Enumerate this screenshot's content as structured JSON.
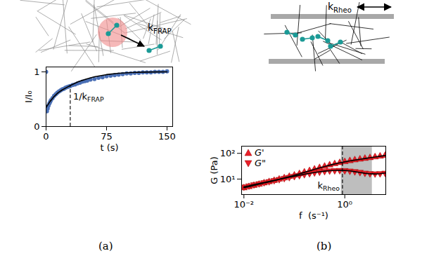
{
  "chart_data": [
    {
      "type": "scatter",
      "caption": "(a)",
      "xlabel": "t (s)",
      "ylabel": "I/I₀",
      "xlim": [
        0,
        157
      ],
      "ylim": [
        0,
        1.09
      ],
      "xticks": [
        0,
        75,
        150
      ],
      "yticks": [
        0,
        1
      ],
      "series": [
        {
          "type": "scatter",
          "color": "#4a6fb5",
          "marker": "circle",
          "x": [
            0,
            1,
            2,
            3,
            4,
            5,
            6,
            8,
            10,
            12,
            14,
            16,
            18,
            20,
            22,
            24,
            26,
            28,
            30,
            33,
            36,
            39,
            42,
            45,
            48,
            51,
            55,
            60,
            65,
            70,
            75,
            80,
            85,
            90,
            95,
            100,
            105,
            110,
            115,
            120,
            125,
            130,
            135,
            140,
            145,
            150
          ],
          "values": [
            1.0,
            0.28,
            0.33,
            0.38,
            0.42,
            0.45,
            0.48,
            0.52,
            0.56,
            0.59,
            0.62,
            0.64,
            0.66,
            0.68,
            0.69,
            0.71,
            0.72,
            0.73,
            0.74,
            0.76,
            0.77,
            0.79,
            0.8,
            0.82,
            0.83,
            0.84,
            0.86,
            0.87,
            0.89,
            0.9,
            0.92,
            0.93,
            0.94,
            0.95,
            0.96,
            0.97,
            0.97,
            0.98,
            0.98,
            0.99,
            0.99,
            0.99,
            1.0,
            1.0,
            1.0,
            1.01
          ]
        },
        {
          "type": "line",
          "color": "#000000",
          "line_style": "solid",
          "x": [
            0,
            5,
            10,
            15,
            20,
            25,
            30,
            40,
            50,
            60,
            75,
            90,
            105,
            120,
            135,
            150
          ],
          "values": [
            0.35,
            0.46,
            0.55,
            0.62,
            0.67,
            0.71,
            0.75,
            0.82,
            0.87,
            0.91,
            0.95,
            0.975,
            0.988,
            0.995,
            0.998,
            1.0
          ]
        }
      ],
      "vline": {
        "x": 30,
        "y_end": 0.75,
        "line_style": "dashed",
        "label": "1/k",
        "label_subscript": "FRAP"
      },
      "schematic": {
        "label": "k",
        "label_subscript": "FRAP"
      }
    },
    {
      "type": "scatter",
      "caption": "(b)",
      "xlabel": "f  (s⁻¹)",
      "ylabel": "G (Pa)",
      "log": true,
      "legend": "upper left",
      "xlim": [
        0.009,
        6.5
      ],
      "ylim": [
        2.5,
        190
      ],
      "xticks": [
        {
          "value": 0.01,
          "label": "10⁻²"
        },
        {
          "value": 1,
          "label": "10⁰"
        }
      ],
      "yticks": [
        {
          "value": 10,
          "label": "10¹"
        },
        {
          "value": 100,
          "label": "10²"
        }
      ],
      "series": [
        {
          "name": "G'",
          "type": "scatter",
          "color": "#e8202a",
          "marker": "triangle-up",
          "x": [
            0.01,
            0.0126,
            0.0158,
            0.02,
            0.0251,
            0.0316,
            0.0398,
            0.0501,
            0.0631,
            0.0794,
            0.1,
            0.126,
            0.158,
            0.2,
            0.251,
            0.316,
            0.398,
            0.501,
            0.631,
            0.794,
            1,
            1.26,
            1.58,
            2,
            2.51,
            3.16,
            3.98,
            5.01,
            6.31
          ],
          "values": [
            4.5,
            5.0,
            5.6,
            6.2,
            7.0,
            7.8,
            8.7,
            9.8,
            11,
            12.5,
            14,
            16,
            18.5,
            21,
            24,
            27.5,
            31,
            35,
            39,
            43,
            47,
            51,
            55,
            59,
            63,
            67,
            72,
            77,
            82
          ]
        },
        {
          "name": "G\"",
          "type": "scatter",
          "color": "#e8202a",
          "marker": "triangle-down",
          "x": [
            0.01,
            0.0126,
            0.0158,
            0.02,
            0.0251,
            0.0316,
            0.0398,
            0.0501,
            0.0631,
            0.0794,
            0.1,
            0.126,
            0.158,
            0.2,
            0.251,
            0.316,
            0.398,
            0.501,
            0.631,
            0.794,
            1,
            1.26,
            1.58,
            2,
            2.51,
            3.16,
            3.98,
            5.01,
            6.31
          ],
          "values": [
            5.0,
            5.5,
            6.1,
            6.7,
            7.4,
            8.1,
            8.9,
            9.8,
            10.8,
            11.8,
            12.9,
            14,
            15.3,
            16.6,
            17.9,
            19.1,
            20.2,
            21.1,
            21.7,
            21.9,
            21.6,
            20.8,
            19.7,
            18.5,
            17.3,
            16.5,
            16.2,
            16.5,
            17.2
          ]
        },
        {
          "type": "line",
          "color": "#000000",
          "line_style": "solid",
          "x": [
            0.01,
            0.0126,
            0.0158,
            0.02,
            0.0251,
            0.0316,
            0.0398,
            0.0501,
            0.0631,
            0.0794,
            0.1,
            0.126,
            0.158,
            0.2,
            0.251,
            0.316,
            0.398,
            0.501,
            0.631,
            0.794,
            1,
            1.26,
            1.58,
            2,
            2.51,
            3.16,
            3.98,
            5.01,
            6.31
          ],
          "values": [
            4.6,
            5.1,
            5.7,
            6.3,
            7.0,
            7.8,
            8.7,
            9.8,
            11,
            12.4,
            14,
            15.9,
            18.2,
            20.8,
            23.8,
            27.2,
            30.8,
            34.6,
            38.6,
            42.6,
            46.6,
            50.6,
            54.6,
            58.6,
            62.8,
            67.2,
            72,
            77,
            82
          ]
        },
        {
          "type": "line",
          "color": "#000000",
          "line_style": "solid",
          "x": [
            0.01,
            0.0126,
            0.0158,
            0.02,
            0.0251,
            0.0316,
            0.0398,
            0.0501,
            0.0631,
            0.0794,
            0.1,
            0.126,
            0.158,
            0.2,
            0.251,
            0.316,
            0.398,
            0.501,
            0.631,
            0.794,
            1,
            1.26,
            1.58,
            2,
            2.51,
            3.16,
            3.98,
            5.01,
            6.31
          ],
          "values": [
            5.0,
            5.5,
            6.1,
            6.7,
            7.4,
            8.1,
            8.9,
            9.8,
            10.8,
            11.8,
            12.9,
            14.1,
            15.4,
            16.7,
            18,
            19.2,
            20.3,
            21.2,
            21.8,
            22,
            21.6,
            20.7,
            19.4,
            18,
            16.8,
            16,
            15.8,
            16.2,
            17.2
          ]
        }
      ],
      "band": {
        "x1": 0.85,
        "x2": 3.5,
        "color": "#b3b3b3"
      },
      "vline": {
        "x": 0.9,
        "line_style": "dashed",
        "label": "k",
        "label_subscript": "Rheo"
      },
      "schematic": {
        "label": "k",
        "label_subscript": "Rheo"
      }
    }
  ]
}
